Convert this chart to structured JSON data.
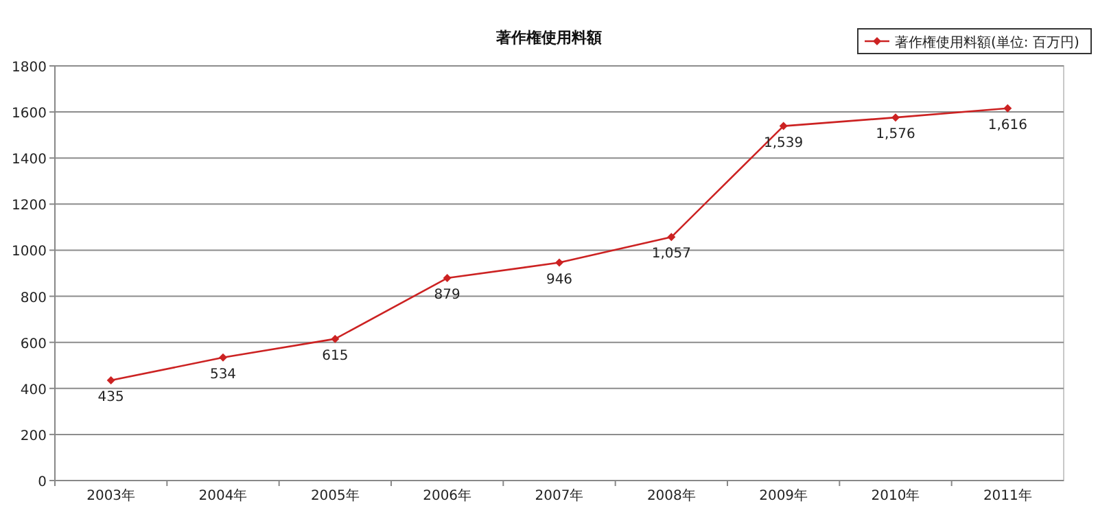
{
  "chart_data": {
    "type": "line",
    "title": "著作権使用料額",
    "categories": [
      "2003年",
      "2004年",
      "2005年",
      "2006年",
      "2007年",
      "2008年",
      "2009年",
      "2010年",
      "2011年"
    ],
    "series": [
      {
        "name": "著作権使用料額(単位: 百万円)",
        "color": "#cc2222",
        "values": [
          435,
          534,
          615,
          879,
          946,
          1057,
          1539,
          1576,
          1616
        ],
        "value_labels": [
          "435",
          "534",
          "615",
          "879",
          "946",
          "1,057",
          "1,539",
          "1,576",
          "1,616"
        ]
      }
    ],
    "ylim": [
      0,
      1800
    ],
    "yticks": [
      0,
      200,
      400,
      600,
      800,
      1000,
      1200,
      1400,
      1600,
      1800
    ],
    "grid": "y",
    "legend": "top right",
    "marker": "diamond",
    "line_style": "solid"
  }
}
